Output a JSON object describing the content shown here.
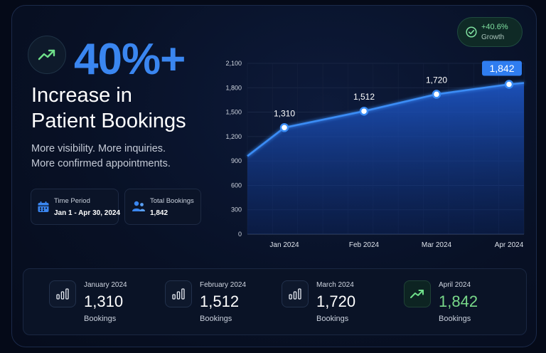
{
  "hero": {
    "headline_value": "40%+",
    "headline_line1": "Increase in",
    "headline_line2": "Patient Bookings",
    "sub_line1": "More visibility. More inquiries.",
    "sub_line2": "More confirmed appointments.",
    "trend_icon": "trending-up-icon"
  },
  "info_boxes": [
    {
      "label": "Time Period",
      "value": "Jan 1 - Apr 30, 2024",
      "icon": "calendar-icon"
    },
    {
      "label": "Total Bookings",
      "value": "1,842",
      "icon": "users-icon"
    }
  ],
  "growth_badge": {
    "value": "+40.6%",
    "label": "Growth",
    "icon": "check-circle-icon"
  },
  "chart_data": {
    "type": "area",
    "x": [
      "Jan 2024",
      "Feb 2024",
      "Mar 2024",
      "Apr 2024"
    ],
    "series": [
      {
        "values": [
          1310,
          1512,
          1720,
          1842
        ]
      }
    ],
    "data_labels": [
      "1,310",
      "1,512",
      "1,720",
      "1,842"
    ],
    "y_ticks": [
      0,
      300,
      600,
      900,
      1200,
      1500,
      1800,
      2100
    ],
    "y_tick_labels": [
      "0",
      "300",
      "600",
      "900",
      "1,200",
      "1,500",
      "1,800",
      "2,100"
    ],
    "ylim": [
      0,
      2100
    ],
    "line_start_value": 960,
    "grid": true,
    "highlight_last_point": true,
    "line_color": "#3a8cf5",
    "fill_color": "#1a4fb8"
  },
  "stats": [
    {
      "month": "January 2024",
      "value": "1,310",
      "unit": "Bookings",
      "icon": "bar-chart-icon",
      "highlight": false
    },
    {
      "month": "February 2024",
      "value": "1,512",
      "unit": "Bookings",
      "icon": "bar-chart-icon",
      "highlight": false
    },
    {
      "month": "March 2024",
      "value": "1,720",
      "unit": "Bookings",
      "icon": "bar-chart-icon",
      "highlight": false
    },
    {
      "month": "April 2024",
      "value": "1,842",
      "unit": "Bookings",
      "icon": "trending-up-icon",
      "highlight": true
    }
  ],
  "colors": {
    "accent": "#3a86f0",
    "positive": "#79d98a",
    "background": "#050a18"
  }
}
